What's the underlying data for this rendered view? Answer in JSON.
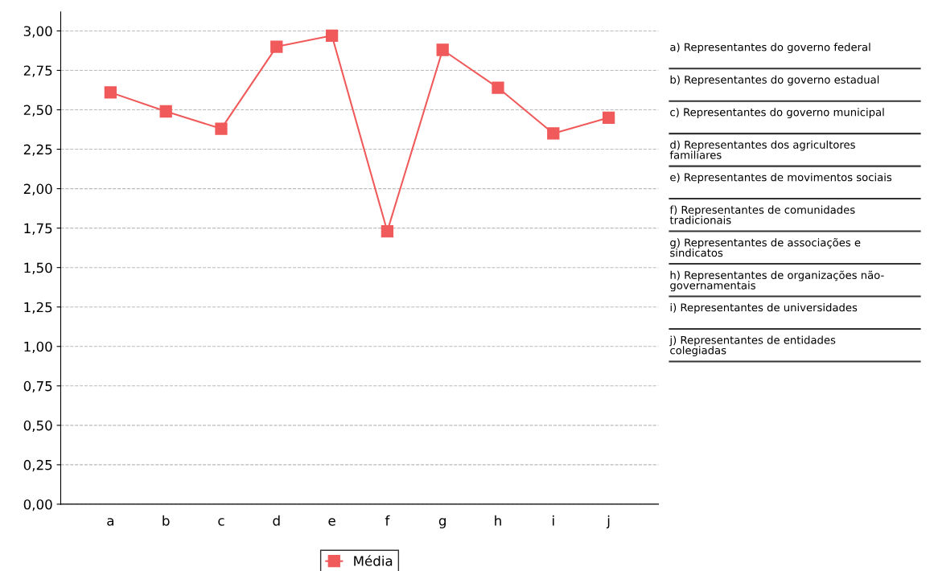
{
  "chart_data": {
    "type": "line",
    "categories": [
      "a",
      "b",
      "c",
      "d",
      "e",
      "f",
      "g",
      "h",
      "i",
      "j"
    ],
    "series": [
      {
        "name": "Média",
        "color": "#f05a5a",
        "values": [
          2.61,
          2.49,
          2.38,
          2.9,
          2.97,
          1.73,
          2.88,
          2.64,
          2.35,
          2.45
        ]
      }
    ],
    "ylim": [
      0,
      3.12
    ],
    "yticks": [
      {
        "value": 0,
        "label": "0,00"
      },
      {
        "value": 0.25,
        "label": "0,25"
      },
      {
        "value": 0.5,
        "label": "0,50"
      },
      {
        "value": 0.75,
        "label": "0,75"
      },
      {
        "value": 1,
        "label": "1,00"
      },
      {
        "value": 1.25,
        "label": "1,25"
      },
      {
        "value": 1.5,
        "label": "1,50"
      },
      {
        "value": 1.75,
        "label": "1,75"
      },
      {
        "value": 2,
        "label": "2,00"
      },
      {
        "value": 2.25,
        "label": "2,25"
      },
      {
        "value": 2.5,
        "label": "2,50"
      },
      {
        "value": 2.75,
        "label": "2,75"
      },
      {
        "value": 3,
        "label": "3,00"
      }
    ],
    "grid": "y",
    "legend": "bottom",
    "marker": "square",
    "line_style": "solid",
    "annotations": [
      "a) Representantes do governo federal",
      "b) Representantes do governo estadual",
      "c) Representantes do governo municipal",
      "d) Representantes dos agricultores\nfamiliares",
      "e) Representantes de movimentos sociais",
      "f) Representantes de comunidades\ntradicionais",
      "g) Representantes de associações e\nsindicatos",
      "h) Representantes de organizações não-\ngovernamentais",
      "i) Representantes de universidades",
      "j) Representantes de entidades\ncolegiadas"
    ]
  }
}
